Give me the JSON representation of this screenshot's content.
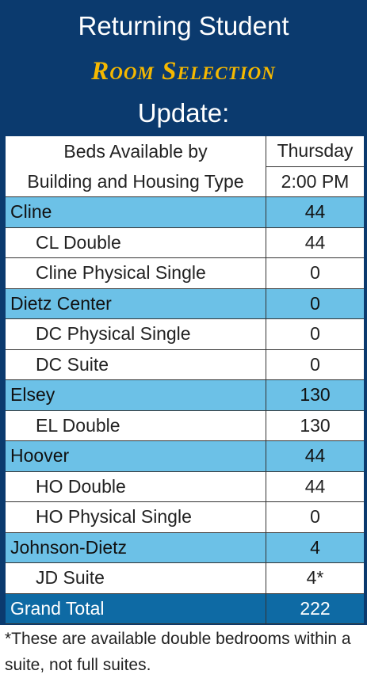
{
  "header": {
    "line1": "Returning Student",
    "line2": "Room Selection",
    "line3": "Update:"
  },
  "table": {
    "columns": [
      [
        "Beds Available by",
        "Building and Housing Type"
      ],
      [
        "Thursday",
        "2:00 PM"
      ]
    ],
    "rows": [
      {
        "kind": "group",
        "label": "Cline",
        "value": 44
      },
      {
        "kind": "sub",
        "label": "CL Double",
        "value": 44
      },
      {
        "kind": "sub",
        "label": "Cline Physical Single",
        "value": 0
      },
      {
        "kind": "group",
        "label": "Dietz Center",
        "value": 0
      },
      {
        "kind": "sub",
        "label": "DC Physical Single",
        "value": 0
      },
      {
        "kind": "sub",
        "label": "DC Suite",
        "value": 0
      },
      {
        "kind": "group",
        "label": "Elsey",
        "value": 130
      },
      {
        "kind": "sub",
        "label": "EL Double",
        "value": 130
      },
      {
        "kind": "group",
        "label": "Hoover",
        "value": 44
      },
      {
        "kind": "sub",
        "label": "HO Double",
        "value": 44
      },
      {
        "kind": "sub",
        "label": "HO Physical Single",
        "value": 0
      },
      {
        "kind": "group",
        "label": "Johnson-Dietz",
        "value": 4
      },
      {
        "kind": "sub",
        "label": "JD Suite",
        "value": "4*"
      },
      {
        "kind": "total",
        "label": "Grand Total",
        "value": 222
      }
    ]
  },
  "footnote": "*These are available double bedrooms within a suite, not full suites."
}
